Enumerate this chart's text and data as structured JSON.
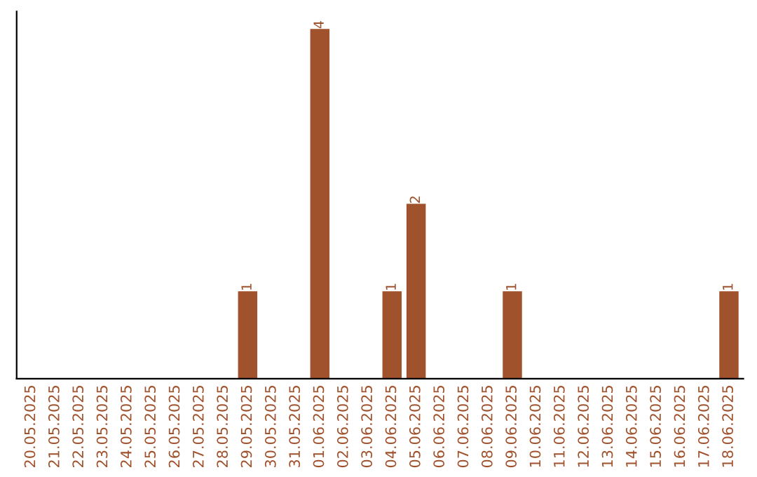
{
  "chart_data": {
    "type": "bar",
    "categories": [
      "20.05.2025",
      "21.05.2025",
      "22.05.2025",
      "23.05.2025",
      "24.05.2025",
      "25.05.2025",
      "26.05.2025",
      "27.05.2025",
      "28.05.2025",
      "29.05.2025",
      "30.05.2025",
      "31.05.2025",
      "01.06.2025",
      "02.06.2025",
      "03.06.2025",
      "04.06.2025",
      "05.06.2025",
      "06.06.2025",
      "07.06.2025",
      "08.06.2025",
      "09.06.2025",
      "10.06.2025",
      "11.06.2025",
      "12.06.2025",
      "13.06.2025",
      "14.06.2025",
      "15.06.2025",
      "16.06.2025",
      "17.06.2025",
      "18.06.2025"
    ],
    "values": [
      0,
      0,
      0,
      0,
      0,
      0,
      0,
      0,
      0,
      1,
      0,
      0,
      4,
      0,
      0,
      1,
      2,
      0,
      0,
      0,
      1,
      0,
      0,
      0,
      0,
      0,
      0,
      0,
      0,
      1
    ],
    "value_labels": [
      null,
      null,
      null,
      null,
      null,
      null,
      null,
      null,
      null,
      "1",
      null,
      null,
      "4",
      null,
      null,
      "1",
      "2",
      null,
      null,
      null,
      "1",
      null,
      null,
      null,
      null,
      null,
      null,
      null,
      null,
      "1"
    ],
    "color": "#a0522d",
    "tick_labels": "x",
    "grid": false,
    "legend": false
  }
}
